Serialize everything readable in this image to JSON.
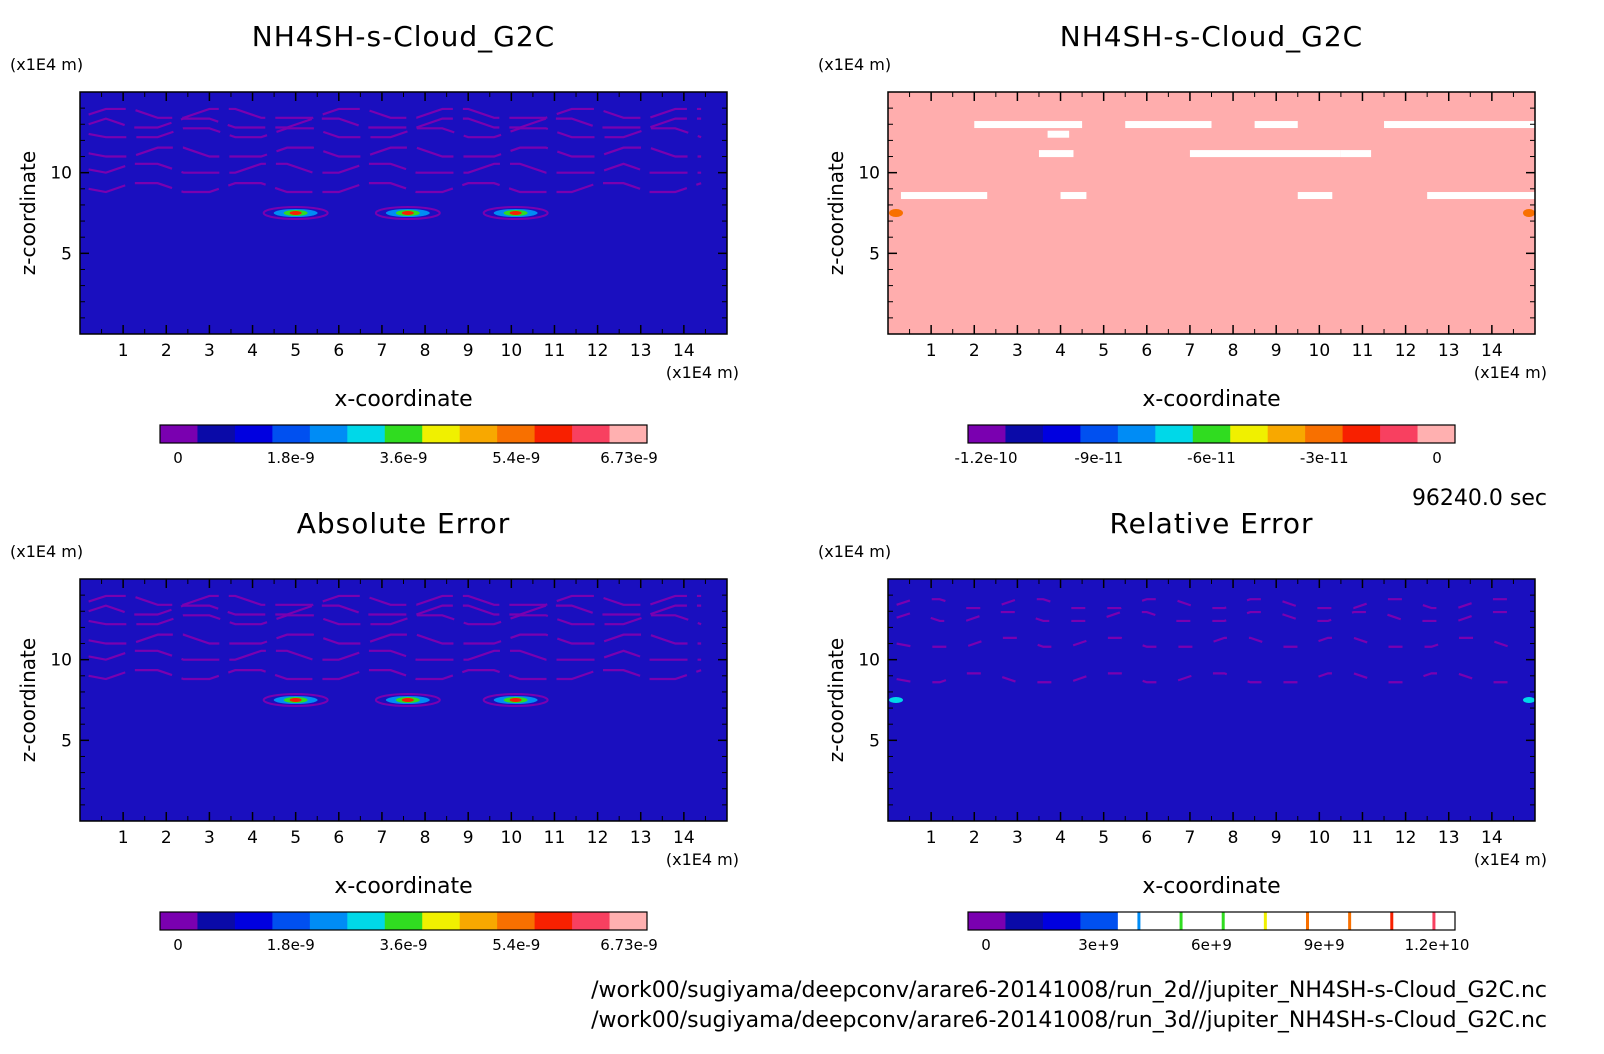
{
  "time_label": "96240.0 sec",
  "files": [
    "/work00/sugiyama/deepconv/arare6-20141008/run_2d//jupiter_NH4SH-s-Cloud_G2C.nc",
    "/work00/sugiyama/deepconv/arare6-20141008/run_3d//jupiter_NH4SH-s-Cloud_G2C.nc"
  ],
  "chart_data": [
    {
      "type": "heatmap",
      "title": "NH4SH-s-Cloud_G2C",
      "xlabel": "x-coordinate",
      "ylabel": "z-coordinate",
      "x_unit": "(x1E4 m)",
      "y_unit": "(x1E4 m)",
      "xlim": [
        0,
        15
      ],
      "ylim": [
        0,
        15
      ],
      "xticks": [
        "1",
        "2",
        "3",
        "4",
        "5",
        "6",
        "7",
        "8",
        "9",
        "10",
        "11",
        "12",
        "13",
        "14"
      ],
      "yticks": [
        "5",
        "10"
      ],
      "background_color": "#1a0fbf",
      "colorbar": {
        "ticks": [
          "0",
          "1.8e-9",
          "3.6e-9",
          "5.4e-9",
          "6.73e-9"
        ],
        "colors": [
          "#7a00b0",
          "#0a0aa8",
          "#0000e0",
          "#0050f0",
          "#008cf5",
          "#00d8e8",
          "#30dc20",
          "#f0f000",
          "#f8a800",
          "#f87000",
          "#f82000",
          "#f84060",
          "#ffb0b0"
        ]
      }
    },
    {
      "type": "heatmap",
      "title": "NH4SH-s-Cloud_G2C",
      "xlabel": "x-coordinate",
      "ylabel": "z-coordinate",
      "x_unit": "(x1E4 m)",
      "y_unit": "(x1E4 m)",
      "xlim": [
        0,
        15
      ],
      "ylim": [
        0,
        15
      ],
      "xticks": [
        "1",
        "2",
        "3",
        "4",
        "5",
        "6",
        "7",
        "8",
        "9",
        "10",
        "11",
        "12",
        "13",
        "14"
      ],
      "yticks": [
        "5",
        "10"
      ],
      "background_color": "#ffadad",
      "colorbar": {
        "ticks": [
          "-1.2e-10",
          "-9e-11",
          "-6e-11",
          "-3e-11",
          "0"
        ],
        "colors": [
          "#7a00b0",
          "#0a0aa8",
          "#0000e0",
          "#0050f0",
          "#008cf5",
          "#00d8e8",
          "#30dc20",
          "#f0f000",
          "#f8a800",
          "#f87000",
          "#f82000",
          "#f84060",
          "#ffb0b0"
        ]
      }
    },
    {
      "type": "heatmap",
      "title": "Absolute Error",
      "xlabel": "x-coordinate",
      "ylabel": "z-coordinate",
      "x_unit": "(x1E4 m)",
      "y_unit": "(x1E4 m)",
      "xlim": [
        0,
        15
      ],
      "ylim": [
        0,
        15
      ],
      "xticks": [
        "1",
        "2",
        "3",
        "4",
        "5",
        "6",
        "7",
        "8",
        "9",
        "10",
        "11",
        "12",
        "13",
        "14"
      ],
      "yticks": [
        "5",
        "10"
      ],
      "background_color": "#1a0fbf",
      "colorbar": {
        "ticks": [
          "0",
          "1.8e-9",
          "3.6e-9",
          "5.4e-9",
          "6.73e-9"
        ],
        "colors": [
          "#7a00b0",
          "#0a0aa8",
          "#0000e0",
          "#0050f0",
          "#008cf5",
          "#00d8e8",
          "#30dc20",
          "#f0f000",
          "#f8a800",
          "#f87000",
          "#f82000",
          "#f84060",
          "#ffb0b0"
        ]
      }
    },
    {
      "type": "heatmap",
      "title": "Relative Error",
      "xlabel": "x-coordinate",
      "ylabel": "z-coordinate",
      "x_unit": "(x1E4 m)",
      "y_unit": "(x1E4 m)",
      "xlim": [
        0,
        15
      ],
      "ylim": [
        0,
        15
      ],
      "xticks": [
        "1",
        "2",
        "3",
        "4",
        "5",
        "6",
        "7",
        "8",
        "9",
        "10",
        "11",
        "12",
        "13",
        "14"
      ],
      "yticks": [
        "5",
        "10"
      ],
      "background_color": "#1a0fbf",
      "colorbar": {
        "ticks": [
          "0",
          "3e+9",
          "6e+9",
          "9e+9",
          "1.2e+10"
        ],
        "colors": [
          "#7a00b0",
          "#0a0aa8",
          "#0000e0",
          "#0050f0",
          "#ffffff",
          "#ffffff",
          "#ffffff",
          "#ffffff",
          "#ffffff",
          "#ffffff",
          "#ffffff",
          "#ffffff",
          "#ffffff"
        ],
        "lines": [
          "#008cf5",
          "#30dc20",
          "#30dc20",
          "#f0f000",
          "#f87000",
          "#f87000",
          "#f82000",
          "#f84060"
        ]
      }
    }
  ]
}
